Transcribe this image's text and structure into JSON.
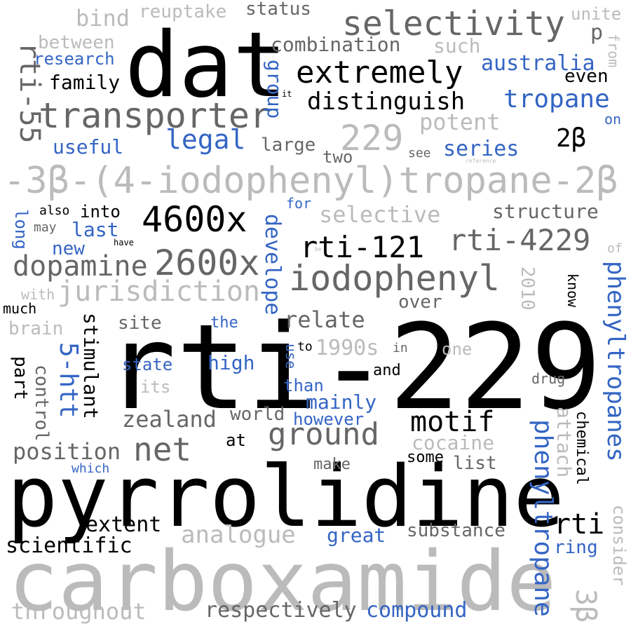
{
  "colors": {
    "black": "#000000",
    "dark_gray": "#666666",
    "light_gray": "#bbbbbb",
    "blue": "#3465c4"
  },
  "words": [
    {
      "text": "rti-229",
      "color": "black"
    },
    {
      "text": "pyrrolidine",
      "color": "black"
    },
    {
      "text": "carboxamide",
      "color": "light_gray"
    },
    {
      "text": "dat",
      "color": "black"
    },
    {
      "text": "-3β-(4-iodophenyl)tropane-2β",
      "color": "light_gray"
    },
    {
      "text": "transporter",
      "color": "dark_gray"
    },
    {
      "text": "selectivity",
      "color": "dark_gray"
    },
    {
      "text": "extremely",
      "color": "black"
    },
    {
      "text": "iodophenyl",
      "color": "dark_gray"
    },
    {
      "text": "4600x",
      "color": "black"
    },
    {
      "text": "2600x",
      "color": "dark_gray"
    },
    {
      "text": "rti-121",
      "color": "black"
    },
    {
      "text": "rti-4229",
      "color": "dark_gray"
    },
    {
      "text": "229",
      "color": "light_gray"
    },
    {
      "text": "dopamine",
      "color": "dark_gray"
    },
    {
      "text": "jurisdiction",
      "color": "light_gray"
    },
    {
      "text": "net",
      "color": "dark_gray"
    },
    {
      "text": "ground",
      "color": "dark_gray"
    },
    {
      "text": "motif",
      "color": "black"
    },
    {
      "text": "rti-55",
      "color": "dark_gray"
    },
    {
      "text": "distinguish",
      "color": "black"
    },
    {
      "text": "tropane",
      "color": "blue"
    },
    {
      "text": "legal",
      "color": "blue"
    },
    {
      "text": "phenyltropanes",
      "color": "blue"
    },
    {
      "text": "phenyltropane",
      "color": "blue"
    },
    {
      "text": "5-htt",
      "color": "blue"
    },
    {
      "text": "zealand",
      "color": "dark_gray"
    },
    {
      "text": "position",
      "color": "dark_gray"
    },
    {
      "text": "analogue",
      "color": "light_gray"
    },
    {
      "text": "extent",
      "color": "black"
    },
    {
      "text": "scientific",
      "color": "black"
    },
    {
      "text": "throughout",
      "color": "light_gray"
    },
    {
      "text": "respectively",
      "color": "dark_gray"
    },
    {
      "text": "compound",
      "color": "blue"
    },
    {
      "text": "rti",
      "color": "black"
    },
    {
      "text": "3β",
      "color": "light_gray"
    },
    {
      "text": "2β",
      "color": "black"
    },
    {
      "text": "relate",
      "color": "dark_gray"
    },
    {
      "text": "1990s",
      "color": "light_gray"
    },
    {
      "text": "australia",
      "color": "blue"
    },
    {
      "text": "series",
      "color": "blue"
    },
    {
      "text": "potent",
      "color": "light_gray"
    },
    {
      "text": "structure",
      "color": "dark_gray"
    },
    {
      "text": "selective",
      "color": "light_gray"
    },
    {
      "text": "combination",
      "color": "dark_gray"
    },
    {
      "text": "status",
      "color": "dark_gray"
    },
    {
      "text": "reuptake",
      "color": "light_gray"
    },
    {
      "text": "bind",
      "color": "light_gray"
    },
    {
      "text": "between",
      "color": "light_gray"
    },
    {
      "text": "research",
      "color": "blue"
    },
    {
      "text": "family",
      "color": "black"
    },
    {
      "text": "useful",
      "color": "blue"
    },
    {
      "text": "large",
      "color": "dark_gray"
    },
    {
      "text": "two",
      "color": "dark_gray"
    },
    {
      "text": "group",
      "color": "blue"
    },
    {
      "text": "such",
      "color": "light_gray"
    },
    {
      "text": "p",
      "color": "dark_gray"
    },
    {
      "text": "unite",
      "color": "light_gray"
    },
    {
      "text": "from",
      "color": "light_gray"
    },
    {
      "text": "even",
      "color": "black"
    },
    {
      "text": "on",
      "color": "blue"
    },
    {
      "text": "see",
      "color": "dark_gray"
    },
    {
      "text": "reference",
      "color": "light_gray"
    },
    {
      "text": "it",
      "color": "black"
    },
    {
      "text": "into",
      "color": "black"
    },
    {
      "text": "also",
      "color": "black"
    },
    {
      "text": "may",
      "color": "dark_gray"
    },
    {
      "text": "last",
      "color": "blue"
    },
    {
      "text": "new",
      "color": "blue"
    },
    {
      "text": "have",
      "color": "black"
    },
    {
      "text": "long",
      "color": "blue"
    },
    {
      "text": "for",
      "color": "blue"
    },
    {
      "text": "develope",
      "color": "blue"
    },
    {
      "text": "be",
      "color": "light_gray"
    },
    {
      "text": "of",
      "color": "light_gray"
    },
    {
      "text": "with",
      "color": "light_gray"
    },
    {
      "text": "much",
      "color": "black"
    },
    {
      "text": "brain",
      "color": "light_gray"
    },
    {
      "text": "site",
      "color": "dark_gray"
    },
    {
      "text": "the",
      "color": "blue"
    },
    {
      "text": "over",
      "color": "dark_gray"
    },
    {
      "text": "2010",
      "color": "light_gray"
    },
    {
      "text": "know",
      "color": "black"
    },
    {
      "text": "stimulant",
      "color": "black"
    },
    {
      "text": "high",
      "color": "blue"
    },
    {
      "text": "state",
      "color": "blue"
    },
    {
      "text": "its",
      "color": "light_gray"
    },
    {
      "text": "use",
      "color": "blue"
    },
    {
      "text": "to",
      "color": "black"
    },
    {
      "text": "in",
      "color": "dark_gray"
    },
    {
      "text": "one",
      "color": "light_gray"
    },
    {
      "text": "and",
      "color": "black"
    },
    {
      "text": "than",
      "color": "blue"
    },
    {
      "text": "drug",
      "color": "dark_gray"
    },
    {
      "text": "part",
      "color": "black"
    },
    {
      "text": "control",
      "color": "dark_gray"
    },
    {
      "text": "mainly",
      "color": "blue"
    },
    {
      "text": "however",
      "color": "blue"
    },
    {
      "text": "world",
      "color": "dark_gray"
    },
    {
      "text": "at",
      "color": "black"
    },
    {
      "text": "attach",
      "color": "light_gray"
    },
    {
      "text": "chemical",
      "color": "black"
    },
    {
      "text": "cocaine",
      "color": "light_gray"
    },
    {
      "text": "make",
      "color": "dark_gray"
    },
    {
      "text": "some",
      "color": "black"
    },
    {
      "text": "list",
      "color": "dark_gray"
    },
    {
      "text": "which",
      "color": "blue"
    },
    {
      "text": "substance",
      "color": "dark_gray"
    },
    {
      "text": "great",
      "color": "blue"
    },
    {
      "text": "ring",
      "color": "blue"
    },
    {
      "text": "consider",
      "color": "light_gray"
    }
  ]
}
